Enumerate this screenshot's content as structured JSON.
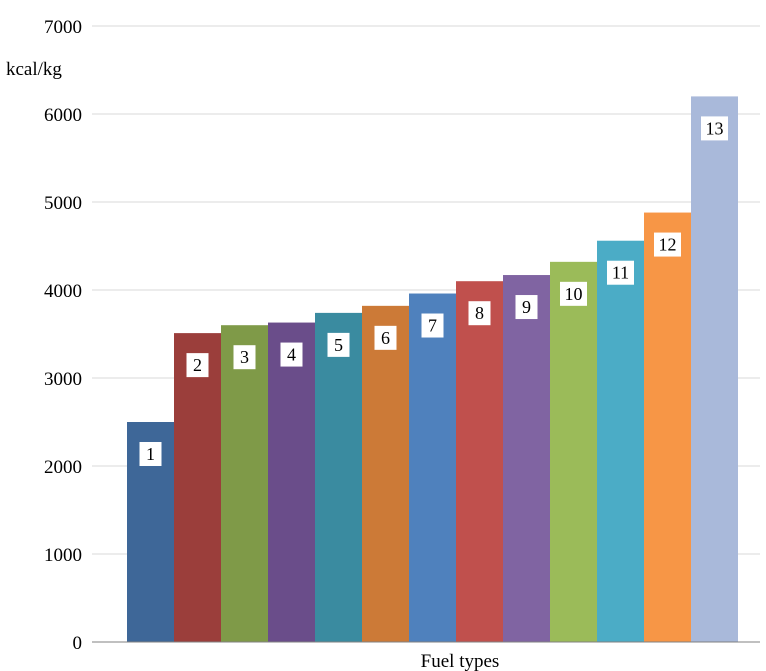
{
  "chart_data": {
    "type": "bar",
    "ylabel": "kcal/kg",
    "xlabel": "Fuel types",
    "ylim": [
      0,
      7000
    ],
    "yticks": [
      0,
      1000,
      2000,
      3000,
      4000,
      5000,
      6000,
      7000
    ],
    "grid": true,
    "categories": [
      "1",
      "2",
      "3",
      "4",
      "5",
      "6",
      "7",
      "8",
      "9",
      "10",
      "11",
      "12",
      "13"
    ],
    "values": [
      2500,
      3510,
      3600,
      3630,
      3740,
      3820,
      3960,
      4100,
      4170,
      4320,
      4560,
      4880,
      6200
    ],
    "colors": [
      "#3e6798",
      "#9b3e3b",
      "#7f9a48",
      "#6a4d8a",
      "#3a8ba0",
      "#cc7a37",
      "#4f81bd",
      "#c0504d",
      "#8064a2",
      "#9bbb59",
      "#4bacc6",
      "#f79646",
      "#a9b9da"
    ]
  }
}
